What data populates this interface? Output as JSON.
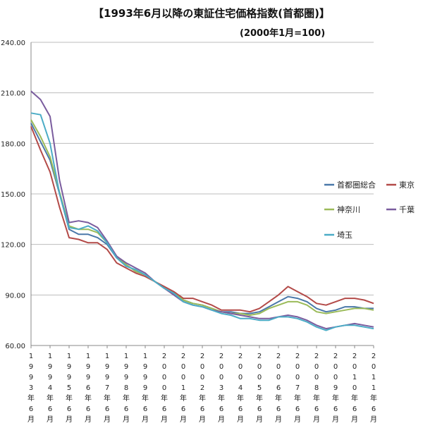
{
  "chart_data": {
    "type": "line",
    "title": "【1993年6月以降の東証住宅価格指数(首都圏)】",
    "subtitle": "(2000年1月=100)",
    "ylim": [
      60,
      240
    ],
    "yticks": [
      "60.00",
      "90.00",
      "120.00",
      "150.00",
      "180.00",
      "210.00",
      "240.00"
    ],
    "grid": true,
    "legend_position": "right",
    "x_start_year": 1993.5,
    "x_end_year": 2011.5,
    "xtick_labels": [
      "1993年6月",
      "1994年6月",
      "1995年6月",
      "1996年6月",
      "1997年6月",
      "1998年6月",
      "1999年6月",
      "2000年6月",
      "2001年6月",
      "2002年6月",
      "2003年6月",
      "2004年6月",
      "2005年6月",
      "2006年6月",
      "2007年6月",
      "2008年6月",
      "2009年6月",
      "2010年6月",
      "2011年6月"
    ],
    "x": [
      1993.5,
      1994.0,
      1994.5,
      1995.0,
      1995.5,
      1996.0,
      1996.5,
      1997.0,
      1997.5,
      1998.0,
      1998.5,
      1999.0,
      1999.5,
      2000.0,
      2000.5,
      2001.0,
      2001.5,
      2002.0,
      2002.5,
      2003.0,
      2003.5,
      2004.0,
      2004.5,
      2005.0,
      2005.5,
      2006.0,
      2006.5,
      2007.0,
      2007.5,
      2008.0,
      2008.5,
      2009.0,
      2009.5,
      2010.0,
      2010.5,
      2011.0,
      2011.5
    ],
    "series": [
      {
        "name": "首都圏総合",
        "color": "#4a78a9",
        "values": [
          192,
          181,
          170,
          150,
          129,
          126,
          126,
          124,
          120,
          112,
          108,
          104,
          102,
          98,
          94,
          91,
          87,
          85,
          84,
          82,
          80,
          80,
          79,
          79,
          80,
          83,
          86,
          89,
          88,
          86,
          82,
          80,
          81,
          83,
          83,
          82,
          82
        ]
      },
      {
        "name": "東京",
        "color": "#b34a48",
        "values": [
          190,
          176,
          163,
          142,
          124,
          123,
          121,
          121,
          117,
          109,
          106,
          103,
          101,
          98,
          95,
          92,
          88,
          88,
          86,
          84,
          81,
          81,
          81,
          80,
          82,
          86,
          90,
          95,
          92,
          89,
          85,
          84,
          86,
          88,
          88,
          87,
          85
        ]
      },
      {
        "name": "神奈川",
        "color": "#9bbb59",
        "values": [
          194,
          184,
          172,
          151,
          131,
          129,
          129,
          127,
          121,
          113,
          108,
          104,
          102,
          98,
          94,
          91,
          87,
          85,
          84,
          82,
          80,
          79,
          79,
          78,
          79,
          82,
          84,
          86,
          86,
          84,
          80,
          79,
          80,
          81,
          82,
          82,
          81
        ]
      },
      {
        "name": "千葉",
        "color": "#7a5c9e",
        "values": [
          211,
          206,
          196,
          158,
          133,
          134,
          133,
          130,
          122,
          113,
          109,
          106,
          103,
          98,
          94,
          90,
          86,
          84,
          83,
          81,
          80,
          79,
          78,
          77,
          76,
          76,
          77,
          78,
          77,
          75,
          72,
          70,
          71,
          72,
          73,
          72,
          71
        ]
      },
      {
        "name": "埼玉",
        "color": "#4bacc6",
        "values": [
          198,
          197,
          180,
          150,
          130,
          129,
          131,
          128,
          121,
          112,
          107,
          105,
          102,
          98,
          94,
          91,
          86,
          84,
          83,
          81,
          79,
          78,
          76,
          76,
          75,
          75,
          77,
          77,
          76,
          74,
          71,
          69,
          71,
          72,
          72,
          71,
          70
        ]
      }
    ]
  }
}
